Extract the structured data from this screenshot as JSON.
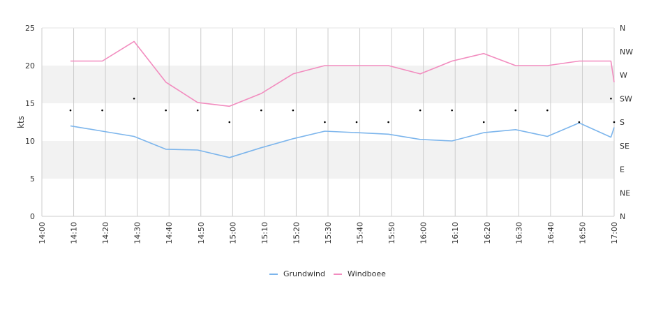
{
  "chart_data": {
    "type": "line",
    "ylabel": "kts",
    "ylim": [
      0,
      25
    ],
    "y_ticks": [
      "0",
      "5",
      "10",
      "15",
      "20",
      "25"
    ],
    "y_bands": [
      [
        5,
        10
      ],
      [
        15,
        20
      ]
    ],
    "x_ticks": [
      "14:00",
      "14:10",
      "14:20",
      "14:30",
      "14:40",
      "14:50",
      "15:00",
      "15:10",
      "15:20",
      "15:30",
      "15:40",
      "15:50",
      "16:00",
      "16:10",
      "16:20",
      "16:30",
      "16:40",
      "16:50",
      "17:00"
    ],
    "x_grid": [
      "14:10",
      "14:20",
      "14:30",
      "14:40",
      "14:50",
      "15:00",
      "15:10",
      "15:20",
      "15:30",
      "15:40",
      "15:50",
      "16:00",
      "16:10",
      "16:20",
      "16:30",
      "16:40",
      "16:50",
      "17:00"
    ],
    "y2_ticks": [
      "N",
      "NE",
      "E",
      "SE",
      "S",
      "SW",
      "W",
      "NW",
      "N"
    ],
    "legend_position": "bottom",
    "series": [
      {
        "name": "Grundwind",
        "color": "#7cb5ec",
        "x": [
          "14:09",
          "14:19",
          "14:29",
          "14:39",
          "14:49",
          "14:59",
          "15:09",
          "15:19",
          "15:29",
          "15:39",
          "15:49",
          "15:59",
          "16:09",
          "16:19",
          "16:29",
          "16:39",
          "16:49",
          "16:59",
          "17:00"
        ],
        "values": [
          12.0,
          11.3,
          10.6,
          8.9,
          8.8,
          7.8,
          9.1,
          10.3,
          11.3,
          11.1,
          10.9,
          10.2,
          10.0,
          11.1,
          11.5,
          10.6,
          12.4,
          10.5,
          11.8
        ]
      },
      {
        "name": "Windboee",
        "color": "#f28cbf",
        "x": [
          "14:09",
          "14:19",
          "14:29",
          "14:39",
          "14:49",
          "14:59",
          "15:09",
          "15:19",
          "15:29",
          "15:39",
          "15:49",
          "15:59",
          "16:09",
          "16:19",
          "16:29",
          "16:39",
          "16:49",
          "16:59",
          "17:00"
        ],
        "values": [
          20.6,
          20.6,
          23.2,
          17.8,
          15.1,
          14.6,
          16.3,
          18.9,
          20.0,
          20.0,
          20.0,
          18.9,
          20.6,
          21.6,
          20.0,
          20.0,
          20.6,
          20.6,
          17.8
        ]
      }
    ],
    "direction_markers": {
      "x": [
        "14:09",
        "14:19",
        "14:29",
        "14:39",
        "14:49",
        "14:59",
        "15:09",
        "15:19",
        "15:29",
        "15:39",
        "15:49",
        "15:59",
        "16:09",
        "16:19",
        "16:29",
        "16:39",
        "16:49",
        "16:59",
        "17:00"
      ],
      "values": [
        "SSW",
        "SSW",
        "SW",
        "SSW",
        "SSW",
        "S",
        "SSW",
        "SSW",
        "S",
        "S",
        "S",
        "SSW",
        "SSW",
        "S",
        "SSW",
        "SSW",
        "S",
        "SW",
        "S"
      ]
    }
  }
}
